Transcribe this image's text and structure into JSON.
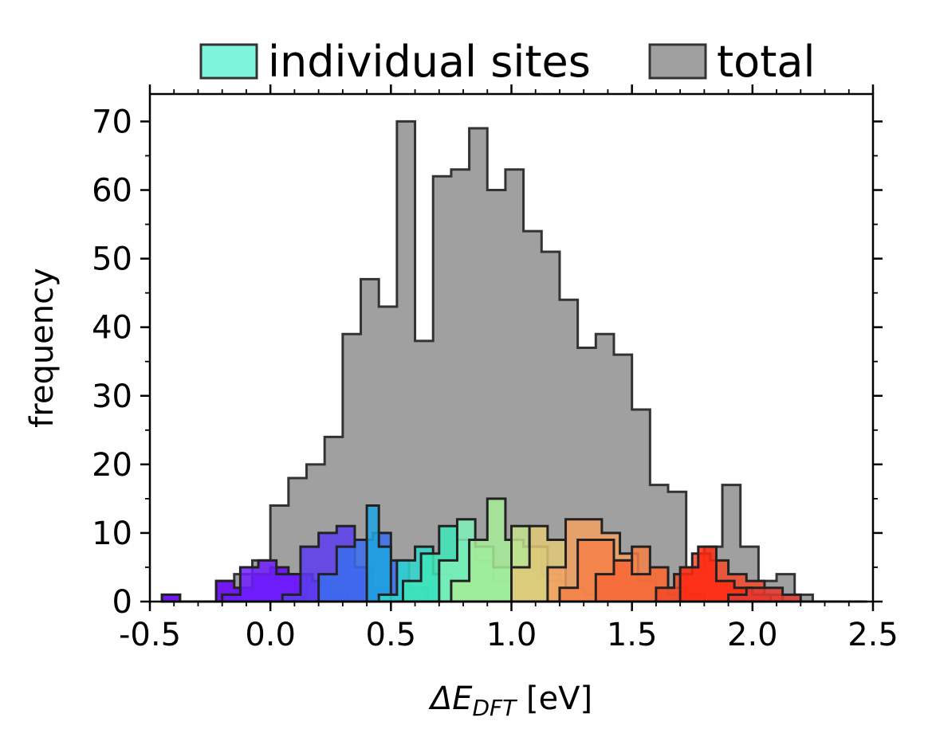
{
  "chart_data": {
    "type": "histogram",
    "xlabel_main": "ΔE",
    "xlabel_sub": "DFT",
    "xlabel_unit": " [eV]",
    "ylabel": "frequency",
    "xlim": [
      -0.5,
      2.5
    ],
    "ylim": [
      0,
      74
    ],
    "x_ticks": [
      -0.5,
      0.0,
      0.5,
      1.0,
      1.5,
      2.0,
      2.5
    ],
    "x_tick_labels": [
      "-0.5",
      "0.0",
      "0.5",
      "1.0",
      "1.5",
      "2.0",
      "2.5"
    ],
    "y_ticks": [
      0,
      10,
      20,
      30,
      40,
      50,
      60,
      70
    ],
    "y_tick_labels": [
      "0",
      "10",
      "20",
      "30",
      "40",
      "50",
      "60",
      "70"
    ],
    "legend": {
      "placement": "top",
      "items": [
        {
          "label": "individual sites",
          "color": "#7ff5dc"
        },
        {
          "label": "total",
          "color": "#a0a0a0"
        }
      ]
    },
    "total": {
      "name": "total",
      "color": "#a0a0a0",
      "bin_width": 0.075,
      "edges_start": -0.45,
      "counts": [
        1,
        0,
        0,
        3,
        4,
        6,
        14,
        18,
        20,
        24,
        39,
        47,
        43,
        70,
        38,
        62,
        63,
        69,
        60,
        63,
        54,
        51,
        44,
        37,
        39,
        36,
        28,
        17,
        16,
        5,
        8,
        17,
        8,
        3,
        4,
        1,
        0,
        0,
        0
      ]
    },
    "sites": [
      {
        "color": "#6a00ff",
        "x0": -0.45,
        "w": 0.075,
        "counts": [
          1,
          0,
          0,
          3,
          2,
          4,
          5,
          4,
          0
        ]
      },
      {
        "color": "#6f1dff",
        "x0": -0.2,
        "w": 0.075,
        "counts": [
          1,
          5,
          6,
          4,
          4,
          3,
          1
        ]
      },
      {
        "color": "#5a3cf0",
        "x0": 0.05,
        "w": 0.075,
        "counts": [
          1,
          8,
          10,
          11,
          5,
          2
        ]
      },
      {
        "color": "#3a6ef0",
        "x0": 0.2,
        "w": 0.075,
        "counts": [
          4,
          8,
          9,
          10,
          6,
          2
        ]
      },
      {
        "color": "#1fa5e0",
        "x0": 0.4,
        "w": 0.05,
        "counts": [
          14,
          8
        ]
      },
      {
        "color": "#2fd8d0",
        "x0": 0.45,
        "w": 0.075,
        "counts": [
          1,
          6,
          8,
          4,
          2,
          1
        ]
      },
      {
        "color": "#3ee6b8",
        "x0": 0.55,
        "w": 0.075,
        "counts": [
          3,
          7,
          11,
          9,
          6,
          3,
          1
        ]
      },
      {
        "color": "#7ef0b8",
        "x0": 0.7,
        "w": 0.075,
        "counts": [
          6,
          12,
          8,
          5,
          2
        ]
      },
      {
        "color": "#a6ec98",
        "x0": 0.75,
        "w": 0.075,
        "counts": [
          3,
          9,
          15,
          9,
          8,
          4,
          1
        ]
      },
      {
        "color": "#c2e08e",
        "x0": 1.0,
        "w": 0.075,
        "counts": [
          11,
          8,
          3
        ]
      },
      {
        "color": "#e0c878",
        "x0": 1.0,
        "w": 0.075,
        "counts": [
          5,
          11,
          9,
          2,
          1
        ]
      },
      {
        "color": "#f2a060",
        "x0": 1.15,
        "w": 0.075,
        "counts": [
          5,
          12,
          12,
          10,
          7,
          3
        ]
      },
      {
        "color": "#f58048",
        "x0": 1.2,
        "w": 0.075,
        "counts": [
          2,
          9,
          9,
          6,
          8,
          5,
          1
        ]
      },
      {
        "color": "#f56a3a",
        "x0": 1.35,
        "w": 0.075,
        "counts": [
          4,
          6,
          4,
          5,
          2,
          1
        ]
      },
      {
        "color": "#f24a2a",
        "x0": 1.6,
        "w": 0.075,
        "counts": [
          2,
          4,
          7,
          6,
          4,
          3,
          1
        ]
      },
      {
        "color": "#ff2a10",
        "x0": 1.7,
        "w": 0.075,
        "counts": [
          5,
          8,
          3,
          2,
          1
        ]
      },
      {
        "color": "#e63a30",
        "x0": 1.9,
        "w": 0.075,
        "counts": [
          1,
          2,
          2,
          1,
          0,
          0
        ]
      }
    ]
  }
}
